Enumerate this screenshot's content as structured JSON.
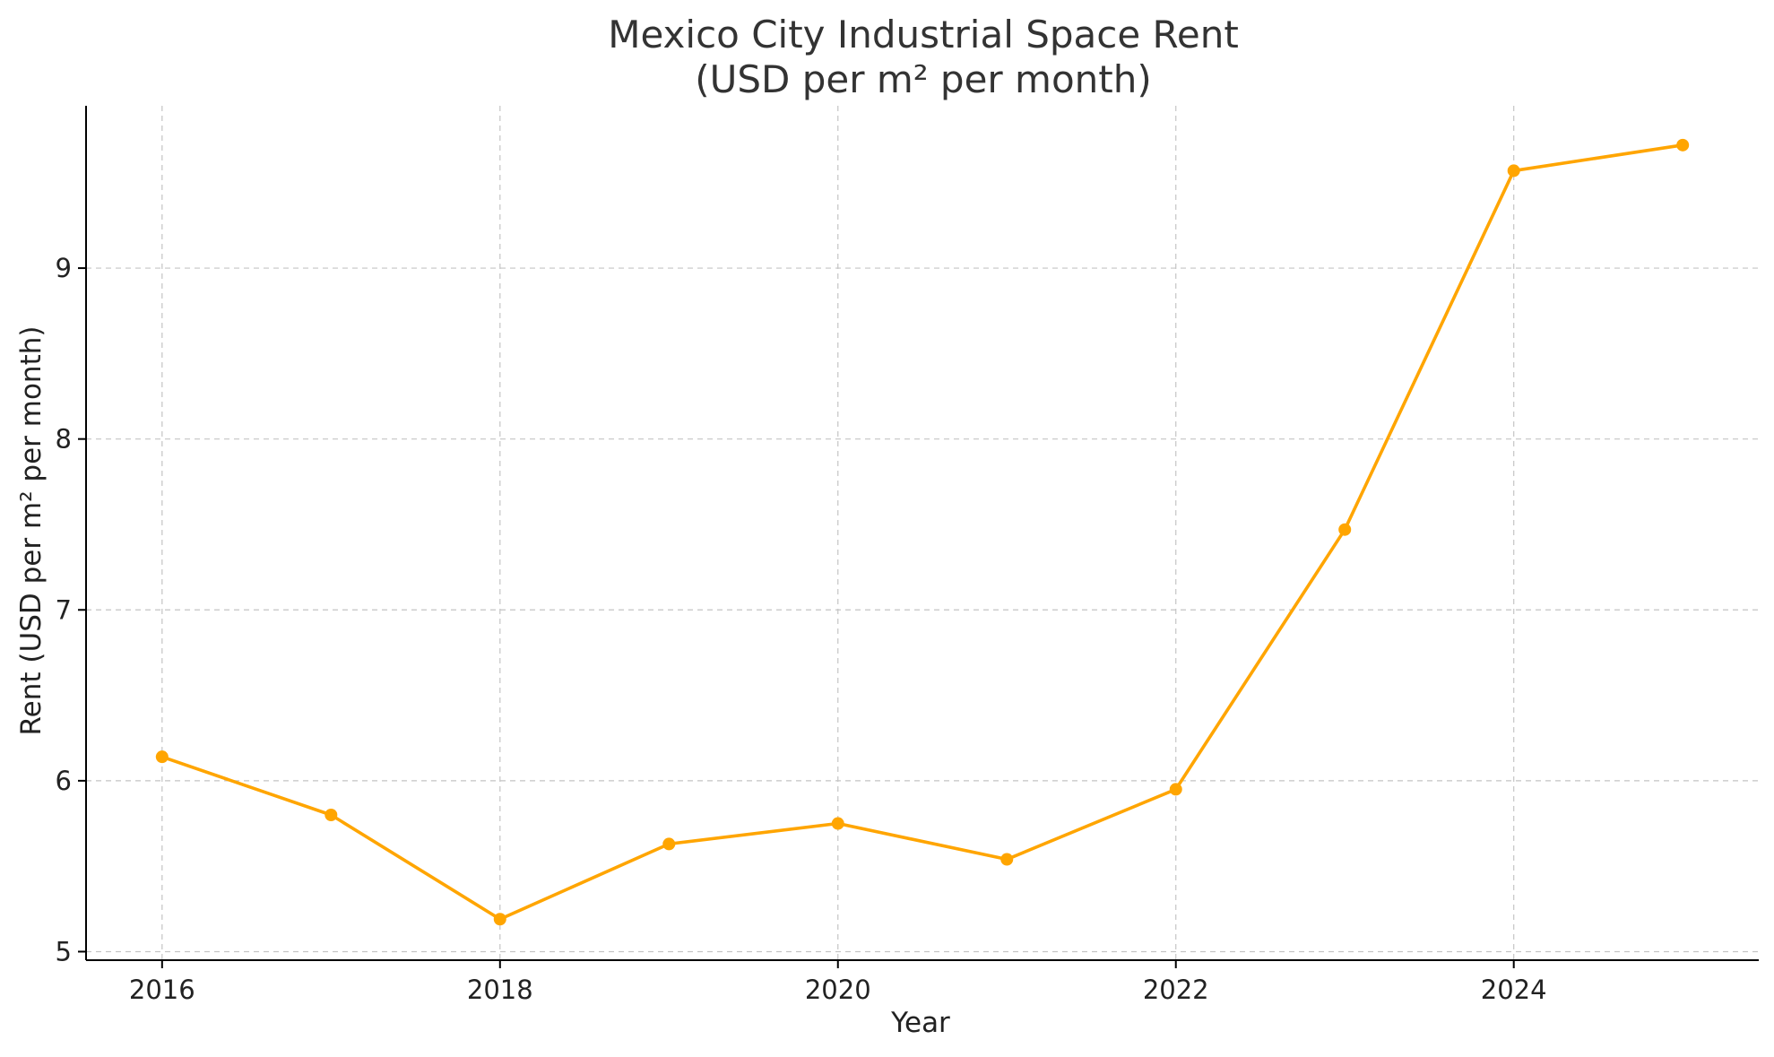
{
  "chart_data": {
    "type": "line",
    "title": "Mexico City Industrial Space Rent",
    "subtitle": "(USD per m² per month)",
    "xlabel": "Year",
    "ylabel": "Rent (USD per m² per month)",
    "x": [
      2016,
      2017,
      2018,
      2019,
      2020,
      2021,
      2022,
      2023,
      2024,
      2025
    ],
    "series": [
      {
        "values": [
          6.14,
          5.8,
          5.19,
          5.63,
          5.75,
          5.54,
          5.95,
          7.47,
          9.57,
          9.72
        ],
        "color": "#ffa500"
      }
    ],
    "xticks": [
      "2016",
      "2018",
      "2020",
      "2022",
      "2024"
    ],
    "yticks": [
      "5",
      "6",
      "7",
      "8",
      "9"
    ],
    "xlim": [
      2015.55,
      2025.45
    ],
    "ylim": [
      4.95,
      9.95
    ],
    "grid": true,
    "legend": "none"
  }
}
